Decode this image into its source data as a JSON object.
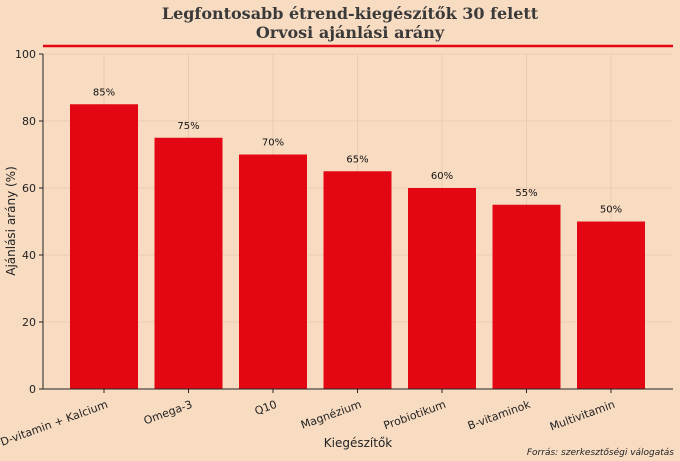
{
  "chart_data": {
    "type": "bar",
    "title": "Legfontosabb étrend-kiegészítők 30 felett",
    "subtitle": "Orvosi ajánlási arány",
    "xlabel": "Kiegészítők",
    "ylabel": "Ajánlási arány (%)",
    "ylim": [
      0,
      100
    ],
    "yticks": [
      0,
      20,
      40,
      60,
      80,
      100
    ],
    "categories": [
      "D-vitamin + Kalcium",
      "Omega-3",
      "Q10",
      "Magnézium",
      "Probiotikum",
      "B-vitaminok",
      "Multivitamin"
    ],
    "values": [
      85,
      75,
      70,
      65,
      60,
      55,
      50
    ],
    "data_labels": [
      "85%",
      "75%",
      "70%",
      "65%",
      "60%",
      "55%",
      "50%"
    ],
    "grid": true,
    "source": "Forrás: szerkesztőségi válogatás"
  },
  "colors": {
    "background": "#f8dcc2",
    "bar": "#e30613",
    "accent_line": "#e30613",
    "grid": "#e6c6ab",
    "axis": "#222222"
  }
}
